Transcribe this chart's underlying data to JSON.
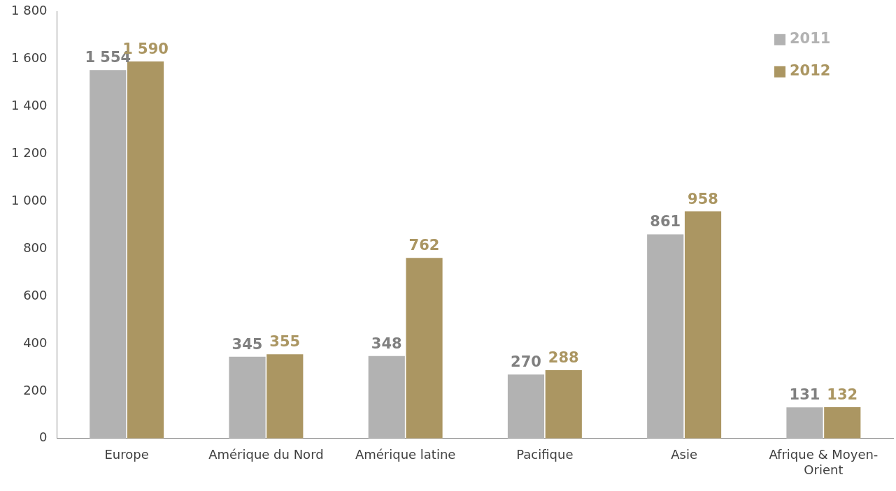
{
  "chart_data": {
    "type": "bar",
    "categories": [
      "Europe",
      "Amérique du Nord",
      "Amérique latine",
      "Pacifique",
      "Asie",
      "Afrique & Moyen-Orient"
    ],
    "series": [
      {
        "name": "2011",
        "color": "#b2b2b2",
        "values": [
          1554,
          345,
          348,
          270,
          861,
          131
        ],
        "value_labels": [
          "1 554",
          "345",
          "348",
          "270",
          "861",
          "131"
        ]
      },
      {
        "name": "2012",
        "color": "#ab9662",
        "values": [
          1590,
          355,
          762,
          288,
          958,
          132
        ],
        "value_labels": [
          "1 590",
          "355",
          "762",
          "288",
          "958",
          "132"
        ]
      }
    ],
    "ylim": [
      0,
      1800
    ],
    "yticks": [
      0,
      200,
      400,
      600,
      800,
      {
        "value": 1000,
        "label": "1 000"
      },
      {
        "value": 1200,
        "label": "1 200"
      },
      {
        "value": 1400,
        "label": "1 400"
      },
      {
        "value": 1600,
        "label": "1 600"
      },
      {
        "value": 1800,
        "label": "1 800"
      }
    ],
    "grid": false,
    "legend": "top right"
  }
}
